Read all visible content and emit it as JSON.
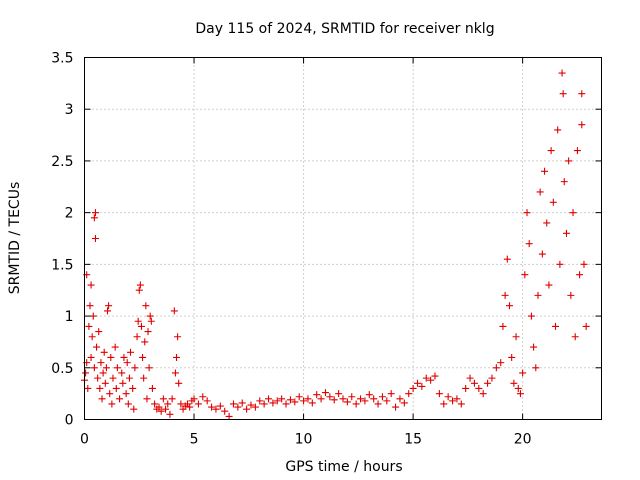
{
  "chart_data": {
    "type": "scatter",
    "title": "Day 115 of 2024, SRMTID for receiver nklg",
    "xlabel": "GPS time / hours",
    "ylabel": "SRMTID / TECUs",
    "xlim": [
      0,
      23.6
    ],
    "ylim": [
      0,
      3.5
    ],
    "xticks": [
      0,
      5,
      10,
      15,
      20
    ],
    "xtick_labels": [
      "0",
      "5",
      "10",
      "15",
      "20"
    ],
    "yticks": [
      0,
      0.5,
      1,
      1.5,
      2,
      2.5,
      3,
      3.5
    ],
    "ytick_labels": [
      "0",
      "0.5",
      "1",
      "1.5",
      "2",
      "2.5",
      "3",
      "3.5"
    ],
    "grid": true,
    "legend": "none",
    "marker": "plus",
    "color": "#e00000",
    "series": [
      {
        "name": "SRMTID",
        "points": [
          [
            0.0,
            0.38
          ],
          [
            0.05,
            0.45
          ],
          [
            0.1,
            0.55
          ],
          [
            0.1,
            1.4
          ],
          [
            0.15,
            0.3
          ],
          [
            0.2,
            0.9
          ],
          [
            0.25,
            1.1
          ],
          [
            0.3,
            0.6
          ],
          [
            0.3,
            1.3
          ],
          [
            0.35,
            0.8
          ],
          [
            0.4,
            1.0
          ],
          [
            0.45,
            0.5
          ],
          [
            0.45,
            1.95
          ],
          [
            0.5,
            2.0
          ],
          [
            0.5,
            1.75
          ],
          [
            0.55,
            0.7
          ],
          [
            0.6,
            0.4
          ],
          [
            0.65,
            0.85
          ],
          [
            0.7,
            0.3
          ],
          [
            0.75,
            0.55
          ],
          [
            0.8,
            0.2
          ],
          [
            0.85,
            0.45
          ],
          [
            0.9,
            0.65
          ],
          [
            0.95,
            0.35
          ],
          [
            1.0,
            0.5
          ],
          [
            1.05,
            1.05
          ],
          [
            1.1,
            1.1
          ],
          [
            1.15,
            0.25
          ],
          [
            1.2,
            0.6
          ],
          [
            1.25,
            0.15
          ],
          [
            1.3,
            0.4
          ],
          [
            1.4,
            0.7
          ],
          [
            1.45,
            0.3
          ],
          [
            1.5,
            0.5
          ],
          [
            1.6,
            0.2
          ],
          [
            1.7,
            0.45
          ],
          [
            1.75,
            0.35
          ],
          [
            1.8,
            0.6
          ],
          [
            1.9,
            0.25
          ],
          [
            1.95,
            0.55
          ],
          [
            2.0,
            0.15
          ],
          [
            2.05,
            0.4
          ],
          [
            2.1,
            0.65
          ],
          [
            2.2,
            0.3
          ],
          [
            2.25,
            0.1
          ],
          [
            2.3,
            0.5
          ],
          [
            2.4,
            0.8
          ],
          [
            2.45,
            0.95
          ],
          [
            2.5,
            1.25
          ],
          [
            2.55,
            1.3
          ],
          [
            2.6,
            0.9
          ],
          [
            2.65,
            0.6
          ],
          [
            2.7,
            0.4
          ],
          [
            2.75,
            0.75
          ],
          [
            2.8,
            1.1
          ],
          [
            2.85,
            0.2
          ],
          [
            2.9,
            0.85
          ],
          [
            2.95,
            0.5
          ],
          [
            3.0,
            1.0
          ],
          [
            3.05,
            0.95
          ],
          [
            3.1,
            0.3
          ],
          [
            3.2,
            0.15
          ],
          [
            3.3,
            0.1
          ],
          [
            3.4,
            0.12
          ],
          [
            3.5,
            0.08
          ],
          [
            3.6,
            0.2
          ],
          [
            3.7,
            0.1
          ],
          [
            3.8,
            0.15
          ],
          [
            3.9,
            0.05
          ],
          [
            4.0,
            0.2
          ],
          [
            4.1,
            1.05
          ],
          [
            4.15,
            0.45
          ],
          [
            4.2,
            0.6
          ],
          [
            4.25,
            0.8
          ],
          [
            4.3,
            0.35
          ],
          [
            4.4,
            0.15
          ],
          [
            4.5,
            0.1
          ],
          [
            4.6,
            0.13
          ],
          [
            4.7,
            0.15
          ],
          [
            4.8,
            0.12
          ],
          [
            4.9,
            0.18
          ],
          [
            5.0,
            0.2
          ],
          [
            5.2,
            0.15
          ],
          [
            5.4,
            0.22
          ],
          [
            5.6,
            0.18
          ],
          [
            5.8,
            0.12
          ],
          [
            6.0,
            0.1
          ],
          [
            6.2,
            0.13
          ],
          [
            6.4,
            0.08
          ],
          [
            6.6,
            0.03
          ],
          [
            6.8,
            0.15
          ],
          [
            7.0,
            0.12
          ],
          [
            7.2,
            0.16
          ],
          [
            7.4,
            0.1
          ],
          [
            7.6,
            0.14
          ],
          [
            7.8,
            0.12
          ],
          [
            8.0,
            0.18
          ],
          [
            8.2,
            0.15
          ],
          [
            8.4,
            0.2
          ],
          [
            8.6,
            0.16
          ],
          [
            8.8,
            0.18
          ],
          [
            9.0,
            0.2
          ],
          [
            9.2,
            0.15
          ],
          [
            9.4,
            0.19
          ],
          [
            9.6,
            0.17
          ],
          [
            9.8,
            0.22
          ],
          [
            10.0,
            0.18
          ],
          [
            10.2,
            0.2
          ],
          [
            10.4,
            0.16
          ],
          [
            10.6,
            0.24
          ],
          [
            10.8,
            0.2
          ],
          [
            11.0,
            0.26
          ],
          [
            11.2,
            0.22
          ],
          [
            11.4,
            0.19
          ],
          [
            11.6,
            0.25
          ],
          [
            11.8,
            0.2
          ],
          [
            12.0,
            0.17
          ],
          [
            12.2,
            0.22
          ],
          [
            12.4,
            0.15
          ],
          [
            12.6,
            0.2
          ],
          [
            12.8,
            0.18
          ],
          [
            13.0,
            0.24
          ],
          [
            13.2,
            0.2
          ],
          [
            13.4,
            0.15
          ],
          [
            13.6,
            0.22
          ],
          [
            13.8,
            0.18
          ],
          [
            14.0,
            0.25
          ],
          [
            14.2,
            0.12
          ],
          [
            14.4,
            0.2
          ],
          [
            14.6,
            0.16
          ],
          [
            14.8,
            0.25
          ],
          [
            15.0,
            0.3
          ],
          [
            15.2,
            0.35
          ],
          [
            15.4,
            0.32
          ],
          [
            15.6,
            0.4
          ],
          [
            15.8,
            0.38
          ],
          [
            16.0,
            0.42
          ],
          [
            16.2,
            0.25
          ],
          [
            16.4,
            0.15
          ],
          [
            16.6,
            0.22
          ],
          [
            16.8,
            0.18
          ],
          [
            17.0,
            0.2
          ],
          [
            17.2,
            0.15
          ],
          [
            17.4,
            0.3
          ],
          [
            17.6,
            0.4
          ],
          [
            17.8,
            0.35
          ],
          [
            18.0,
            0.3
          ],
          [
            18.2,
            0.25
          ],
          [
            18.4,
            0.35
          ],
          [
            18.6,
            0.4
          ],
          [
            18.8,
            0.5
          ],
          [
            19.0,
            0.55
          ],
          [
            19.1,
            0.9
          ],
          [
            19.2,
            1.2
          ],
          [
            19.3,
            1.55
          ],
          [
            19.4,
            1.1
          ],
          [
            19.5,
            0.6
          ],
          [
            19.6,
            0.35
          ],
          [
            19.7,
            0.8
          ],
          [
            19.8,
            0.3
          ],
          [
            19.9,
            0.25
          ],
          [
            20.0,
            0.45
          ],
          [
            20.1,
            1.4
          ],
          [
            20.2,
            2.0
          ],
          [
            20.3,
            1.7
          ],
          [
            20.4,
            1.0
          ],
          [
            20.5,
            0.7
          ],
          [
            20.6,
            0.5
          ],
          [
            20.7,
            1.2
          ],
          [
            20.8,
            2.2
          ],
          [
            20.9,
            1.6
          ],
          [
            21.0,
            2.4
          ],
          [
            21.1,
            1.9
          ],
          [
            21.2,
            1.3
          ],
          [
            21.3,
            2.6
          ],
          [
            21.4,
            2.1
          ],
          [
            21.5,
            0.9
          ],
          [
            21.6,
            2.8
          ],
          [
            21.7,
            1.5
          ],
          [
            21.8,
            3.35
          ],
          [
            21.85,
            3.15
          ],
          [
            21.9,
            2.3
          ],
          [
            22.0,
            1.8
          ],
          [
            22.1,
            2.5
          ],
          [
            22.2,
            1.2
          ],
          [
            22.3,
            2.0
          ],
          [
            22.4,
            0.8
          ],
          [
            22.5,
            2.6
          ],
          [
            22.6,
            1.4
          ],
          [
            22.7,
            2.85
          ],
          [
            22.7,
            3.15
          ],
          [
            22.8,
            1.5
          ],
          [
            22.9,
            0.9
          ]
        ]
      }
    ]
  }
}
